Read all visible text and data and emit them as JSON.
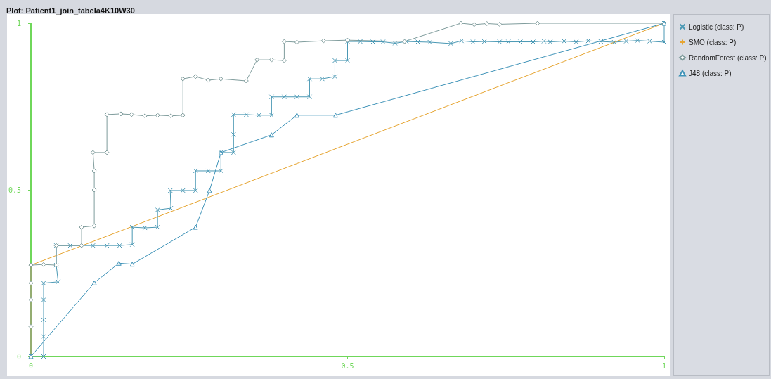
{
  "chart_data": {
    "type": "line",
    "title": "Plot: Patient1_join_tabela4K10W30",
    "xlim": [
      0,
      1
    ],
    "ylim": [
      0,
      1
    ],
    "xticks": [
      0,
      0.5,
      1
    ],
    "yticks": [
      0,
      0.5,
      1
    ],
    "grid": false,
    "legend": "right",
    "series": [
      {
        "name": "Logistic (class: P)",
        "color": "#4a98b4",
        "marker": "cross",
        "x": [
          0,
          0.02,
          0.02,
          0.02,
          0.02,
          0.02,
          0.043,
          0.04,
          0.04,
          0.062,
          0.098,
          0.12,
          0.14,
          0.16,
          0.16,
          0.18,
          0.2,
          0.2,
          0.221,
          0.22,
          0.24,
          0.26,
          0.26,
          0.28,
          0.3,
          0.3,
          0.32,
          0.32,
          0.32,
          0.34,
          0.36,
          0.38,
          0.38,
          0.4,
          0.42,
          0.44,
          0.44,
          0.46,
          0.48,
          0.48,
          0.5,
          0.5,
          0.52,
          0.54,
          0.556,
          0.575,
          0.593,
          0.611,
          0.63,
          0.663,
          0.68,
          0.698,
          0.716,
          0.74,
          0.754,
          0.773,
          0.793,
          0.81,
          0.82,
          0.842,
          0.861,
          0.88,
          0.9,
          0.921,
          0.94,
          0.958,
          0.977,
          1,
          1
        ],
        "values": [
          0,
          0,
          0.06,
          0.11,
          0.17,
          0.22,
          0.224,
          0.274,
          0.333,
          0.333,
          0.333,
          0.333,
          0.333,
          0.336,
          0.388,
          0.386,
          0.388,
          0.44,
          0.445,
          0.498,
          0.498,
          0.498,
          0.557,
          0.557,
          0.557,
          0.612,
          0.612,
          0.666,
          0.726,
          0.726,
          0.724,
          0.724,
          0.779,
          0.779,
          0.779,
          0.779,
          0.833,
          0.833,
          0.84,
          0.888,
          0.888,
          0.945,
          0.945,
          0.944,
          0.944,
          0.94,
          0.945,
          0.944,
          0.943,
          0.939,
          0.947,
          0.944,
          0.945,
          0.944,
          0.944,
          0.944,
          0.944,
          0.946,
          0.944,
          0.946,
          0.944,
          0.947,
          0.945,
          0.943,
          0.946,
          0.948,
          0.946,
          0.943,
          1
        ]
      },
      {
        "name": "SMO (class: P)",
        "color": "#e6a532",
        "marker": "plus",
        "x": [
          0,
          0,
          1
        ],
        "values": [
          0,
          0.274,
          1
        ]
      },
      {
        "name": "RandomForest (class: P)",
        "color": "#7f9c9c",
        "marker": "diamond",
        "x": [
          0,
          0,
          0,
          0,
          0,
          0.02,
          0.04,
          0.04,
          0.08,
          0.08,
          0.1,
          0.1,
          0.1,
          0.098,
          0.12,
          0.12,
          0.142,
          0.159,
          0.18,
          0.2,
          0.221,
          0.24,
          0.24,
          0.26,
          0.28,
          0.3,
          0.34,
          0.357,
          0.38,
          0.4,
          0.4,
          0.42,
          0.462,
          0.5,
          0.59,
          0.679,
          0.7,
          0.72,
          0.74,
          0.8,
          1
        ],
        "values": [
          0,
          0.09,
          0.17,
          0.22,
          0.274,
          0.276,
          0.274,
          0.333,
          0.333,
          0.388,
          0.392,
          0.5,
          0.557,
          0.612,
          0.612,
          0.726,
          0.728,
          0.726,
          0.722,
          0.724,
          0.722,
          0.724,
          0.833,
          0.84,
          0.829,
          0.833,
          0.827,
          0.89,
          0.89,
          0.888,
          0.945,
          0.943,
          0.947,
          0.949,
          0.945,
          1,
          0.996,
          0.999,
          0.997,
          1,
          1
        ]
      },
      {
        "name": "J48 (class: P)",
        "color": "#3f93b8",
        "marker": "triangle",
        "x": [
          0,
          0.1,
          0.139,
          0.16,
          0.26,
          0.282,
          0.3,
          0.38,
          0.42,
          0.481,
          1
        ],
        "values": [
          0,
          0.221,
          0.28,
          0.277,
          0.388,
          0.498,
          0.612,
          0.665,
          0.724,
          0.724,
          1
        ]
      }
    ]
  }
}
